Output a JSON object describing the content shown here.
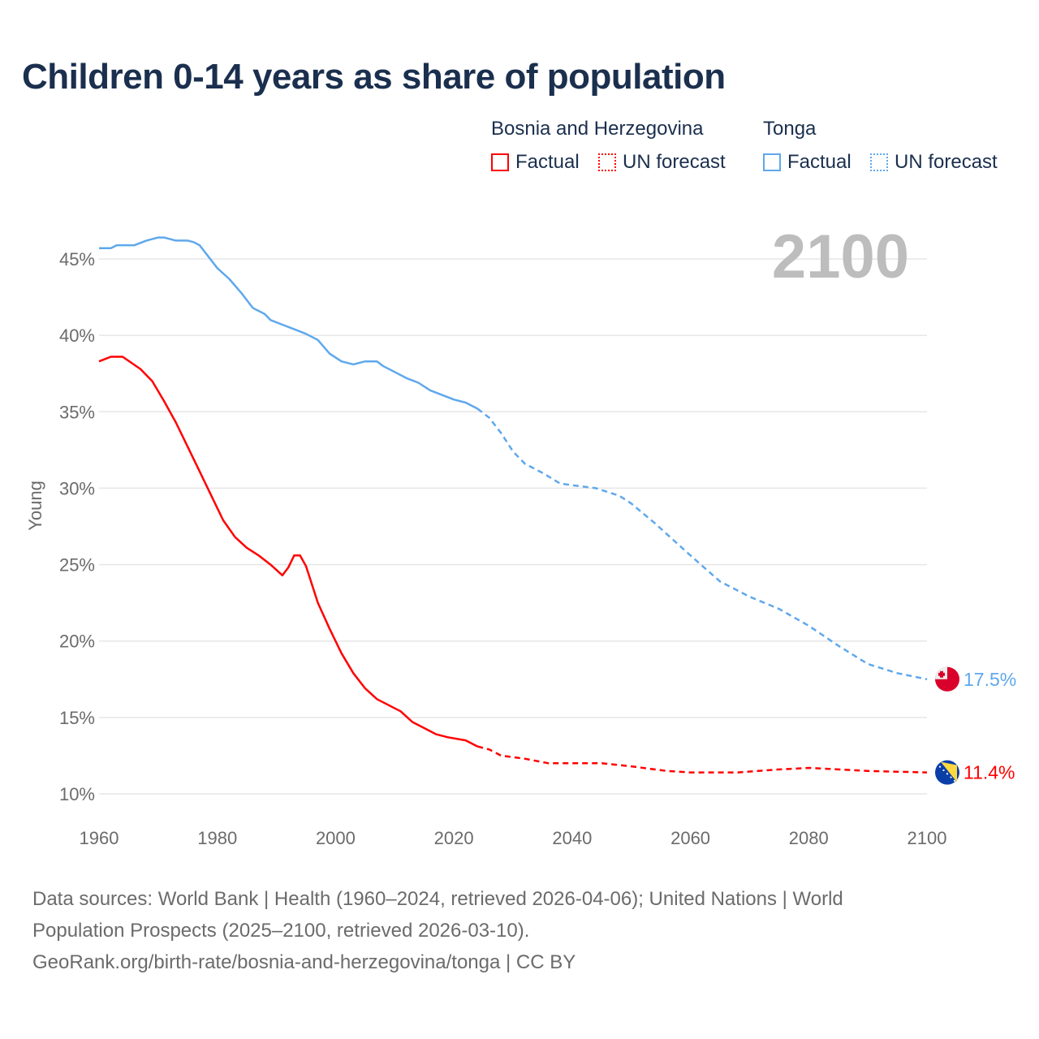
{
  "title": "Children 0-14 years as share of population",
  "legend": {
    "groups": [
      {
        "name": "Bosnia and Herzegovina",
        "color": "#ff0000",
        "items": [
          "Factual",
          "UN forecast"
        ]
      },
      {
        "name": "Tonga",
        "color": "#5fa8ec",
        "items": [
          "Factual",
          "UN forecast"
        ]
      }
    ]
  },
  "year_label": "2100",
  "footer": {
    "line1": "Data sources: World Bank | Health (1960–2024, retrieved 2026-04-06); United Nations | World",
    "line2": "Population Prospects (2025–2100, retrieved 2026-03-10).",
    "line3": "GeoRank.org/birth-rate/bosnia-and-herzegovina/tonga | CC BY"
  },
  "chart_data": {
    "type": "line",
    "title": "Children 0-14 years as share of population",
    "xlabel": "",
    "ylabel": "Young",
    "xlim": [
      1960,
      2100
    ],
    "ylim": [
      10,
      47
    ],
    "x_ticks": [
      "1960",
      "1980",
      "2000",
      "2020",
      "2040",
      "2060",
      "2080",
      "2100"
    ],
    "y_ticks": [
      "10%",
      "15%",
      "20%",
      "25%",
      "30%",
      "35%",
      "40%",
      "45%"
    ],
    "grid": true,
    "legend_position": "top-right",
    "series": [
      {
        "name": "Tonga",
        "color": "#5fa8ec",
        "end_label": "17.5%",
        "factual": [
          [
            1960,
            45.7
          ],
          [
            1962,
            45.7
          ],
          [
            1963,
            45.9
          ],
          [
            1966,
            45.9
          ],
          [
            1968,
            46.2
          ],
          [
            1970,
            46.4
          ],
          [
            1971,
            46.4
          ],
          [
            1973,
            46.2
          ],
          [
            1975,
            46.2
          ],
          [
            1976,
            46.1
          ],
          [
            1977,
            45.9
          ],
          [
            1980,
            44.4
          ],
          [
            1982,
            43.7
          ],
          [
            1984,
            42.8
          ],
          [
            1986,
            41.8
          ],
          [
            1988,
            41.4
          ],
          [
            1989,
            41.0
          ],
          [
            1991,
            40.7
          ],
          [
            1993,
            40.4
          ],
          [
            1995,
            40.1
          ],
          [
            1997,
            39.7
          ],
          [
            1999,
            38.8
          ],
          [
            2001,
            38.3
          ],
          [
            2003,
            38.1
          ],
          [
            2005,
            38.3
          ],
          [
            2007,
            38.3
          ],
          [
            2008,
            38.0
          ],
          [
            2010,
            37.6
          ],
          [
            2012,
            37.2
          ],
          [
            2014,
            36.9
          ],
          [
            2016,
            36.4
          ],
          [
            2018,
            36.1
          ],
          [
            2020,
            35.8
          ],
          [
            2022,
            35.6
          ],
          [
            2024,
            35.2
          ]
        ],
        "forecast": [
          [
            2024,
            35.2
          ],
          [
            2026,
            34.6
          ],
          [
            2028,
            33.6
          ],
          [
            2030,
            32.4
          ],
          [
            2032,
            31.6
          ],
          [
            2035,
            31.0
          ],
          [
            2038,
            30.3
          ],
          [
            2040,
            30.2
          ],
          [
            2044,
            30.0
          ],
          [
            2048,
            29.5
          ],
          [
            2050,
            29.0
          ],
          [
            2054,
            27.7
          ],
          [
            2058,
            26.3
          ],
          [
            2060,
            25.6
          ],
          [
            2065,
            23.9
          ],
          [
            2070,
            22.9
          ],
          [
            2075,
            22.1
          ],
          [
            2080,
            21.0
          ],
          [
            2085,
            19.7
          ],
          [
            2090,
            18.5
          ],
          [
            2095,
            17.9
          ],
          [
            2100,
            17.5
          ]
        ]
      },
      {
        "name": "Bosnia and Herzegovina",
        "color": "#ff0000",
        "end_label": "11.4%",
        "factual": [
          [
            1960,
            38.3
          ],
          [
            1962,
            38.6
          ],
          [
            1964,
            38.6
          ],
          [
            1967,
            37.8
          ],
          [
            1969,
            37.0
          ],
          [
            1971,
            35.7
          ],
          [
            1973,
            34.3
          ],
          [
            1975,
            32.7
          ],
          [
            1977,
            31.1
          ],
          [
            1979,
            29.5
          ],
          [
            1981,
            27.9
          ],
          [
            1983,
            26.8
          ],
          [
            1985,
            26.1
          ],
          [
            1987,
            25.6
          ],
          [
            1989,
            25.0
          ],
          [
            1991,
            24.3
          ],
          [
            1992,
            24.8
          ],
          [
            1993,
            25.6
          ],
          [
            1994,
            25.6
          ],
          [
            1995,
            24.9
          ],
          [
            1997,
            22.5
          ],
          [
            1999,
            20.8
          ],
          [
            2001,
            19.2
          ],
          [
            2003,
            17.9
          ],
          [
            2005,
            16.9
          ],
          [
            2007,
            16.2
          ],
          [
            2009,
            15.8
          ],
          [
            2011,
            15.4
          ],
          [
            2013,
            14.7
          ],
          [
            2015,
            14.3
          ],
          [
            2017,
            13.9
          ],
          [
            2019,
            13.7
          ],
          [
            2022,
            13.5
          ],
          [
            2024,
            13.1
          ]
        ],
        "forecast": [
          [
            2024,
            13.1
          ],
          [
            2026,
            12.9
          ],
          [
            2028,
            12.5
          ],
          [
            2032,
            12.3
          ],
          [
            2036,
            12.0
          ],
          [
            2045,
            12.0
          ],
          [
            2050,
            11.8
          ],
          [
            2056,
            11.5
          ],
          [
            2060,
            11.4
          ],
          [
            2068,
            11.4
          ],
          [
            2075,
            11.6
          ],
          [
            2080,
            11.7
          ],
          [
            2085,
            11.6
          ],
          [
            2090,
            11.5
          ],
          [
            2100,
            11.4
          ]
        ]
      }
    ]
  }
}
